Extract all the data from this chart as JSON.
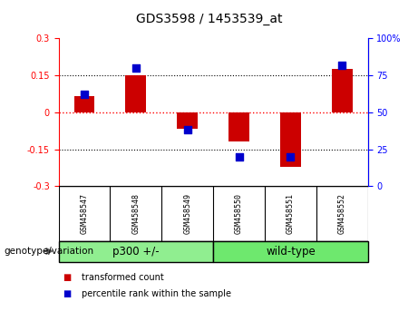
{
  "title": "GDS3598 / 1453539_at",
  "samples": [
    "GSM458547",
    "GSM458548",
    "GSM458549",
    "GSM458550",
    "GSM458551",
    "GSM458552"
  ],
  "bar_values": [
    0.065,
    0.15,
    -0.065,
    -0.12,
    -0.22,
    0.175
  ],
  "percentile_values": [
    62,
    80,
    38,
    20,
    20,
    82
  ],
  "groups": [
    {
      "label": "p300 +/-",
      "start": 0,
      "end": 3,
      "color": "#90EE90"
    },
    {
      "label": "wild-type",
      "start": 3,
      "end": 6,
      "color": "#6EE86E"
    }
  ],
  "group_label": "genotype/variation",
  "ylim_left": [
    -0.3,
    0.3
  ],
  "ylim_right": [
    0,
    100
  ],
  "yticks_left": [
    -0.3,
    -0.15,
    0.0,
    0.15,
    0.3
  ],
  "yticks_right": [
    0,
    25,
    50,
    75,
    100
  ],
  "hlines": [
    0.15,
    0.0,
    -0.15
  ],
  "bar_color": "#CC0000",
  "dot_color": "#0000CC",
  "bar_width": 0.4,
  "dot_size": 40,
  "legend_bar_label": "transformed count",
  "legend_dot_label": "percentile rank within the sample",
  "bg_color": "#FFFFFF",
  "plot_bg": "#FFFFFF",
  "sample_box_color": "#D3D3D3"
}
